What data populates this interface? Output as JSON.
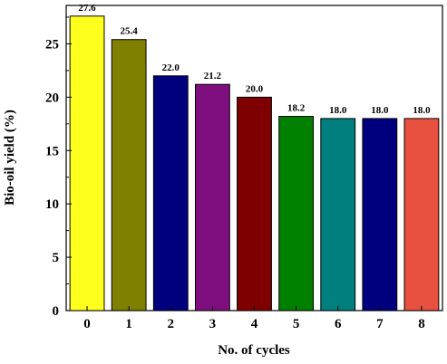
{
  "chart_data": {
    "type": "bar",
    "title": "",
    "xlabel": "No. of cycles",
    "ylabel": "Bio-oil yield (%)",
    "categories": [
      "0",
      "1",
      "2",
      "3",
      "4",
      "5",
      "6",
      "7",
      "8"
    ],
    "values": [
      27.6,
      25.4,
      22.0,
      21.2,
      20.0,
      18.2,
      18.0,
      18.0,
      18.0
    ],
    "value_labels": [
      "27.6",
      "25.4",
      "22.0",
      "21.2",
      "20.0",
      "18.2",
      "18.0",
      "18.0",
      "18.0"
    ],
    "bar_colors": [
      "#FFFF1E",
      "#7F7F00",
      "#00007F",
      "#7F0F7F",
      "#7F0000",
      "#007F00",
      "#007F7F",
      "#00007F",
      "#E8513F"
    ],
    "ylim": [
      0,
      28.6
    ],
    "yticks": [
      0,
      5,
      10,
      15,
      20,
      25
    ],
    "grid": false,
    "legend": "none"
  }
}
